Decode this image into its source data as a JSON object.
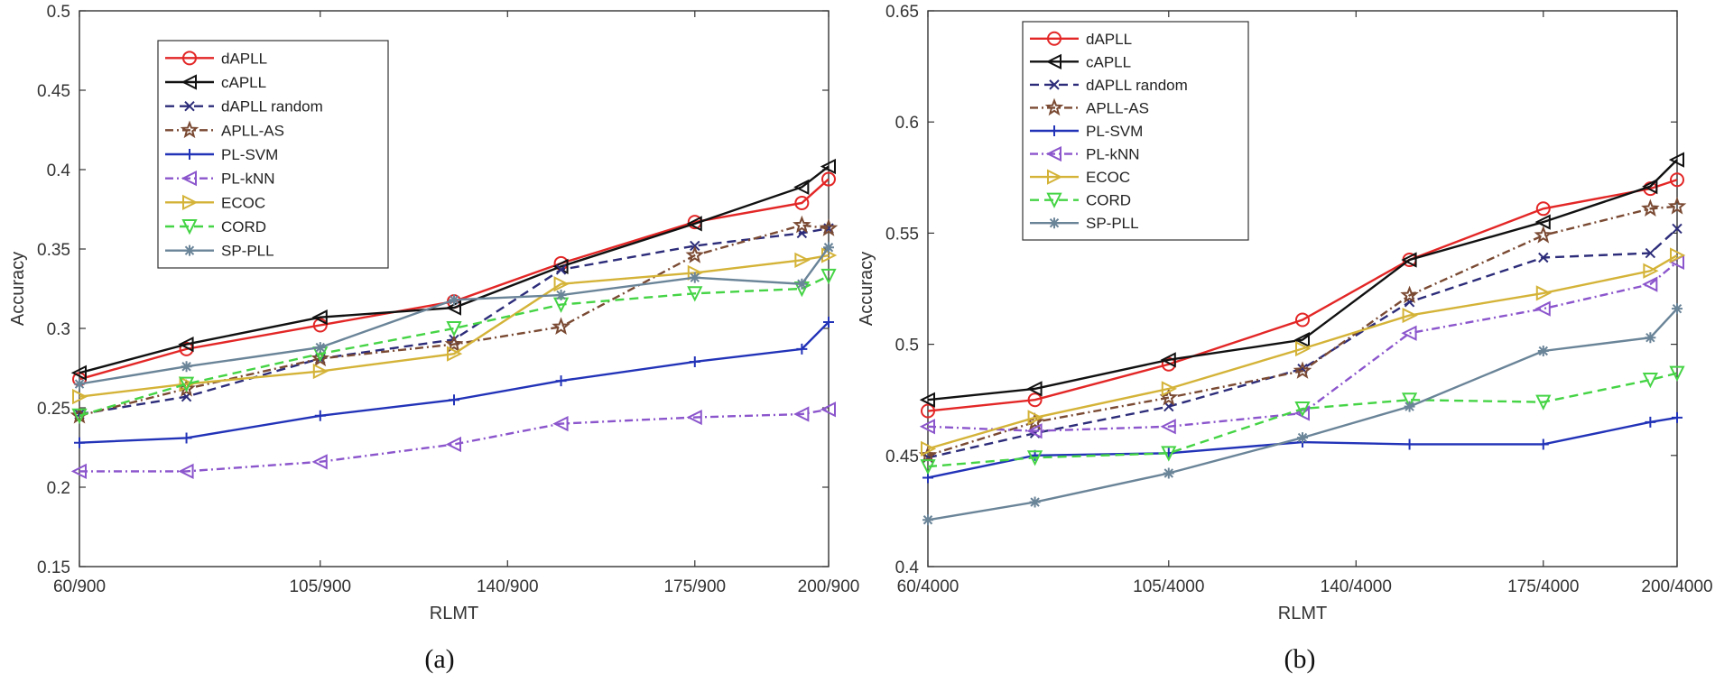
{
  "colors": {
    "dAPLL": "#e32626",
    "cAPLL": "#111111",
    "dAPLL random": "#2c2c7a",
    "APLL-AS": "#7a4a33",
    "PL-SVM": "#2233b8",
    "PL-kNN": "#8b55cc",
    "ECOC": "#d4b338",
    "CORD": "#45d445",
    "SP-PLL": "#6a8498"
  },
  "chart_data": [
    {
      "type": "line",
      "caption": "(a)",
      "xlabel": "RLMT",
      "ylabel": "Accuracy",
      "x": [
        60,
        80,
        105,
        130,
        150,
        175,
        195,
        200
      ],
      "xticks": [
        60,
        105,
        140,
        175,
        200
      ],
      "xtick_labels": [
        "60/900",
        "105/900",
        "140/900",
        "175/900",
        "200/900"
      ],
      "xlim": [
        60,
        200
      ],
      "ylim": [
        0.15,
        0.5
      ],
      "yticks": [
        0.15,
        0.2,
        0.25,
        0.3,
        0.35,
        0.4,
        0.45,
        0.5
      ],
      "ytick_labels": [
        "0.15",
        "0.2",
        "0.25",
        "0.3",
        "0.35",
        "0.4",
        "0.45",
        "0.5"
      ],
      "legend_position": "top-left",
      "series": [
        {
          "name": "dAPLL",
          "marker": "circle",
          "dash": "solid",
          "values": [
            0.268,
            0.287,
            0.302,
            0.317,
            0.341,
            0.367,
            0.379,
            0.394
          ]
        },
        {
          "name": "cAPLL",
          "marker": "triangle-left",
          "dash": "solid",
          "values": [
            0.272,
            0.29,
            0.307,
            0.313,
            0.339,
            0.366,
            0.389,
            0.402
          ]
        },
        {
          "name": "dAPLL random",
          "marker": "x",
          "dash": "dashed",
          "values": [
            0.246,
            0.257,
            0.281,
            0.293,
            0.337,
            0.352,
            0.36,
            0.363
          ]
        },
        {
          "name": "APLL-AS",
          "marker": "star",
          "dash": "dashdot",
          "values": [
            0.245,
            0.262,
            0.281,
            0.29,
            0.301,
            0.346,
            0.365,
            0.363
          ]
        },
        {
          "name": "PL-SVM",
          "marker": "plus",
          "dash": "solid",
          "values": [
            0.228,
            0.231,
            0.245,
            0.255,
            0.267,
            0.279,
            0.287,
            0.304
          ]
        },
        {
          "name": "PL-kNN",
          "marker": "triangle-left",
          "dash": "dashdot",
          "values": [
            0.21,
            0.21,
            0.216,
            0.227,
            0.24,
            0.244,
            0.246,
            0.249
          ]
        },
        {
          "name": "ECOC",
          "marker": "triangle-right",
          "dash": "solid",
          "values": [
            0.257,
            0.265,
            0.273,
            0.284,
            0.328,
            0.335,
            0.343,
            0.346
          ]
        },
        {
          "name": "CORD",
          "marker": "triangle-down",
          "dash": "dashed",
          "values": [
            0.245,
            0.265,
            0.284,
            0.3,
            0.315,
            0.322,
            0.325,
            0.333
          ]
        },
        {
          "name": "SP-PLL",
          "marker": "asterisk",
          "dash": "solid",
          "values": [
            0.265,
            0.276,
            0.288,
            0.318,
            0.321,
            0.332,
            0.328,
            0.351
          ]
        }
      ]
    },
    {
      "type": "line",
      "caption": "(b)",
      "xlabel": "RLMT",
      "ylabel": "Accuracy",
      "x": [
        60,
        80,
        105,
        130,
        150,
        175,
        195,
        200
      ],
      "xticks": [
        60,
        105,
        140,
        175,
        200
      ],
      "xtick_labels": [
        "60/4000",
        "105/4000",
        "140/4000",
        "175/4000",
        "200/4000"
      ],
      "xlim": [
        60,
        200
      ],
      "ylim": [
        0.4,
        0.65
      ],
      "yticks": [
        0.4,
        0.45,
        0.5,
        0.55,
        0.6,
        0.65
      ],
      "ytick_labels": [
        "0.4",
        "0.45",
        "0.5",
        "0.55",
        "0.6",
        "0.65"
      ],
      "legend_position": "top-left",
      "series": [
        {
          "name": "dAPLL",
          "marker": "circle",
          "dash": "solid",
          "values": [
            0.47,
            0.475,
            0.491,
            0.511,
            0.538,
            0.561,
            0.57,
            0.574
          ]
        },
        {
          "name": "cAPLL",
          "marker": "triangle-left",
          "dash": "solid",
          "values": [
            0.475,
            0.48,
            0.493,
            0.502,
            0.538,
            0.555,
            0.571,
            0.583
          ]
        },
        {
          "name": "dAPLL random",
          "marker": "x",
          "dash": "dashed",
          "values": [
            0.449,
            0.46,
            0.472,
            0.489,
            0.519,
            0.539,
            0.541,
            0.552
          ]
        },
        {
          "name": "APLL-AS",
          "marker": "star",
          "dash": "dashdot",
          "values": [
            0.45,
            0.465,
            0.476,
            0.488,
            0.522,
            0.549,
            0.561,
            0.562
          ]
        },
        {
          "name": "PL-SVM",
          "marker": "plus",
          "dash": "solid",
          "values": [
            0.44,
            0.45,
            0.451,
            0.456,
            0.455,
            0.455,
            0.465,
            0.467
          ]
        },
        {
          "name": "PL-kNN",
          "marker": "triangle-left",
          "dash": "dashdot",
          "values": [
            0.463,
            0.461,
            0.463,
            0.469,
            0.505,
            0.516,
            0.527,
            0.537
          ]
        },
        {
          "name": "ECOC",
          "marker": "triangle-right",
          "dash": "solid",
          "values": [
            0.453,
            0.467,
            0.48,
            0.498,
            0.513,
            0.523,
            0.533,
            0.54
          ]
        },
        {
          "name": "CORD",
          "marker": "triangle-down",
          "dash": "dashed",
          "values": [
            0.445,
            0.449,
            0.451,
            0.471,
            0.475,
            0.474,
            0.484,
            0.487
          ]
        },
        {
          "name": "SP-PLL",
          "marker": "asterisk",
          "dash": "solid",
          "values": [
            0.421,
            0.429,
            0.442,
            0.458,
            0.472,
            0.497,
            0.503,
            0.516
          ]
        }
      ]
    }
  ]
}
